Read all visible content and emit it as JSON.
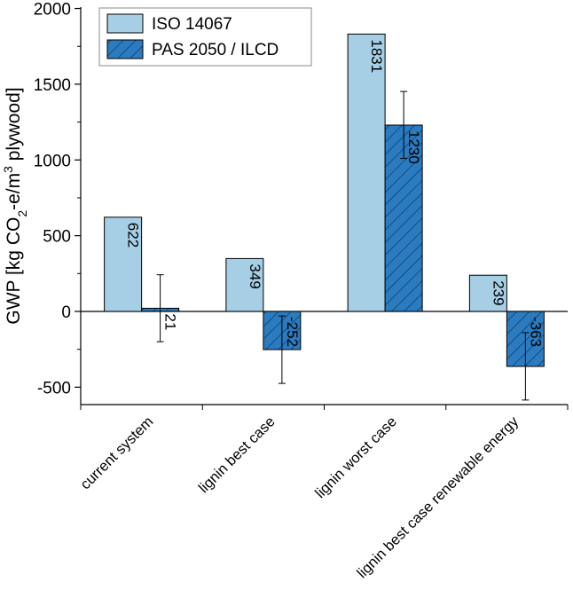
{
  "chart_data": {
    "type": "bar",
    "title": "",
    "xlabel": "",
    "ylabel": {
      "prefix": "GWP [kg CO",
      "sub": "2",
      "mid": "-e/m",
      "sup": "3",
      "suffix": " plywood]"
    },
    "ylim": [
      -600,
      2000
    ],
    "yticks": [
      -500,
      0,
      500,
      1000,
      1500,
      2000
    ],
    "ytick_labels": [
      "-500",
      "0",
      "500",
      "1000",
      "1500",
      "2000"
    ],
    "categories": [
      "current system",
      "lignin best case",
      "lignin worst case",
      "lignin best case renewable energy"
    ],
    "series": [
      {
        "name": "ISO 14067",
        "color": "#a6cfe6",
        "pattern": "none",
        "values": [
          622,
          349,
          1831,
          239
        ],
        "labels": [
          "622",
          "349",
          "1831",
          "239"
        ],
        "errors": [
          null,
          null,
          null,
          null
        ]
      },
      {
        "name": "PAS 2050 / ILCD",
        "color": "#2b7bc0",
        "pattern": "hatch",
        "values": [
          21,
          -252,
          1230,
          -363
        ],
        "labels": [
          "21",
          "-252",
          "1230",
          "-363"
        ],
        "errors": [
          [
            -200,
            242
          ],
          [
            -475,
            -30
          ],
          [
            1010,
            1452
          ],
          [
            -585,
            -140
          ]
        ]
      }
    ],
    "legend_position": "top-left",
    "grid": false
  }
}
